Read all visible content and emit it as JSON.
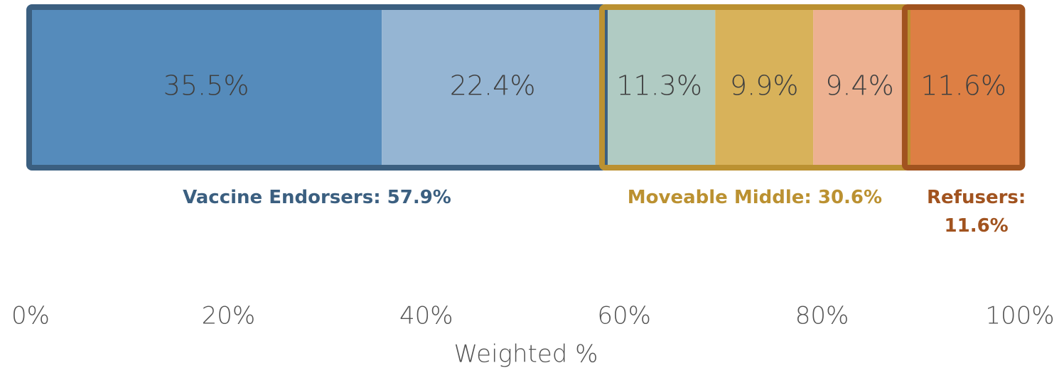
{
  "chart_data": {
    "type": "stacked_bar",
    "groups": [
      {
        "label": "Vaccine Endorsers: 57.9%",
        "color": "#3b5f80",
        "values": [
          35.5,
          22.4
        ],
        "value_labels": [
          "35.5%",
          "22.4%"
        ],
        "colors": [
          "#558bbb",
          "#95b5d3"
        ]
      },
      {
        "label": "Moveable Middle: 30.6%",
        "color": "#bb9131",
        "values": [
          11.3,
          9.9,
          9.4
        ],
        "value_labels": [
          "11.3%",
          "9.9%",
          "9.4%"
        ],
        "colors": [
          "#b0cbc3",
          "#d8b25a",
          "#edb191"
        ]
      },
      {
        "label": "Refusers: 11.6%",
        "color": "#a1531f",
        "values": [
          11.6
        ],
        "value_labels": [
          "11.6%"
        ],
        "colors": [
          "#dd7f44"
        ]
      }
    ],
    "xlim": [
      0,
      100
    ],
    "xticks": [
      {
        "value": 0,
        "label": "0%"
      },
      {
        "value": 20,
        "label": "20%"
      },
      {
        "value": 40,
        "label": "40%"
      },
      {
        "value": 60,
        "label": "60%"
      },
      {
        "value": 80,
        "label": "80%"
      },
      {
        "value": 100,
        "label": "100%"
      }
    ],
    "xlabel": "Weighted %"
  }
}
